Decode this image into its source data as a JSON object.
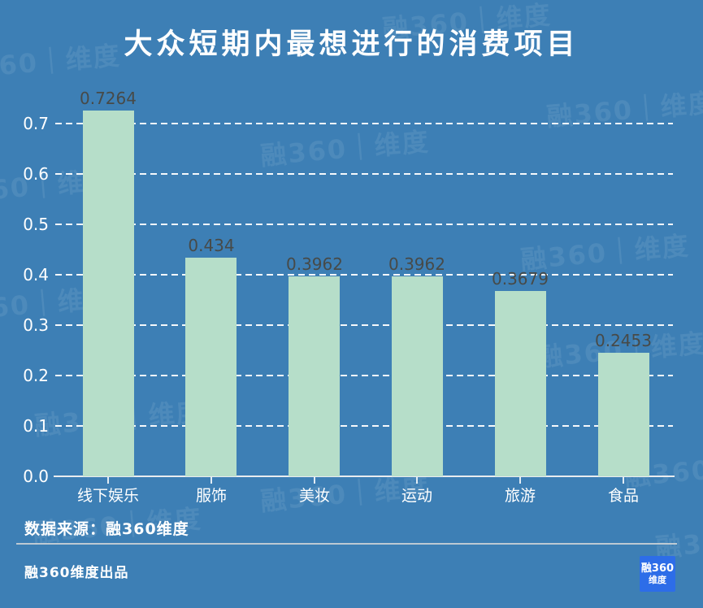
{
  "title": "大众短期内最想进行的消费项目",
  "watermark_text": "融360｜维度",
  "chart_data": {
    "type": "bar",
    "title": "大众短期内最想进行的消费项目",
    "categories": [
      "线下娱乐",
      "服饰",
      "美妆",
      "运动",
      "旅游",
      "食品"
    ],
    "values": [
      0.7264,
      0.434,
      0.3962,
      0.3962,
      0.3679,
      0.2453
    ],
    "value_labels": [
      "0.7264",
      "0.434",
      "0.3962",
      "0.3962",
      "0.3679",
      "0.2453"
    ],
    "xlabel": "",
    "ylabel": "",
    "ylim": [
      0,
      0.75
    ],
    "yticks": [
      0.0,
      0.1,
      0.2,
      0.3,
      0.4,
      0.5,
      0.6,
      0.7
    ],
    "ytick_labels": [
      "0.0",
      "0.1",
      "0.2",
      "0.3",
      "0.4",
      "0.5",
      "0.6",
      "0.7"
    ],
    "grid": "horizontal-dashed",
    "legend": "none",
    "bar_color": "#b6dec9",
    "background_color": "#3d7fb5",
    "value_label_color": "#474a48",
    "axis_text_color": "#ffffff"
  },
  "footer": {
    "source": "数据来源：融360维度",
    "produced_by": "融360维度出品",
    "logo_line1": "融360",
    "logo_line2": "维度"
  }
}
